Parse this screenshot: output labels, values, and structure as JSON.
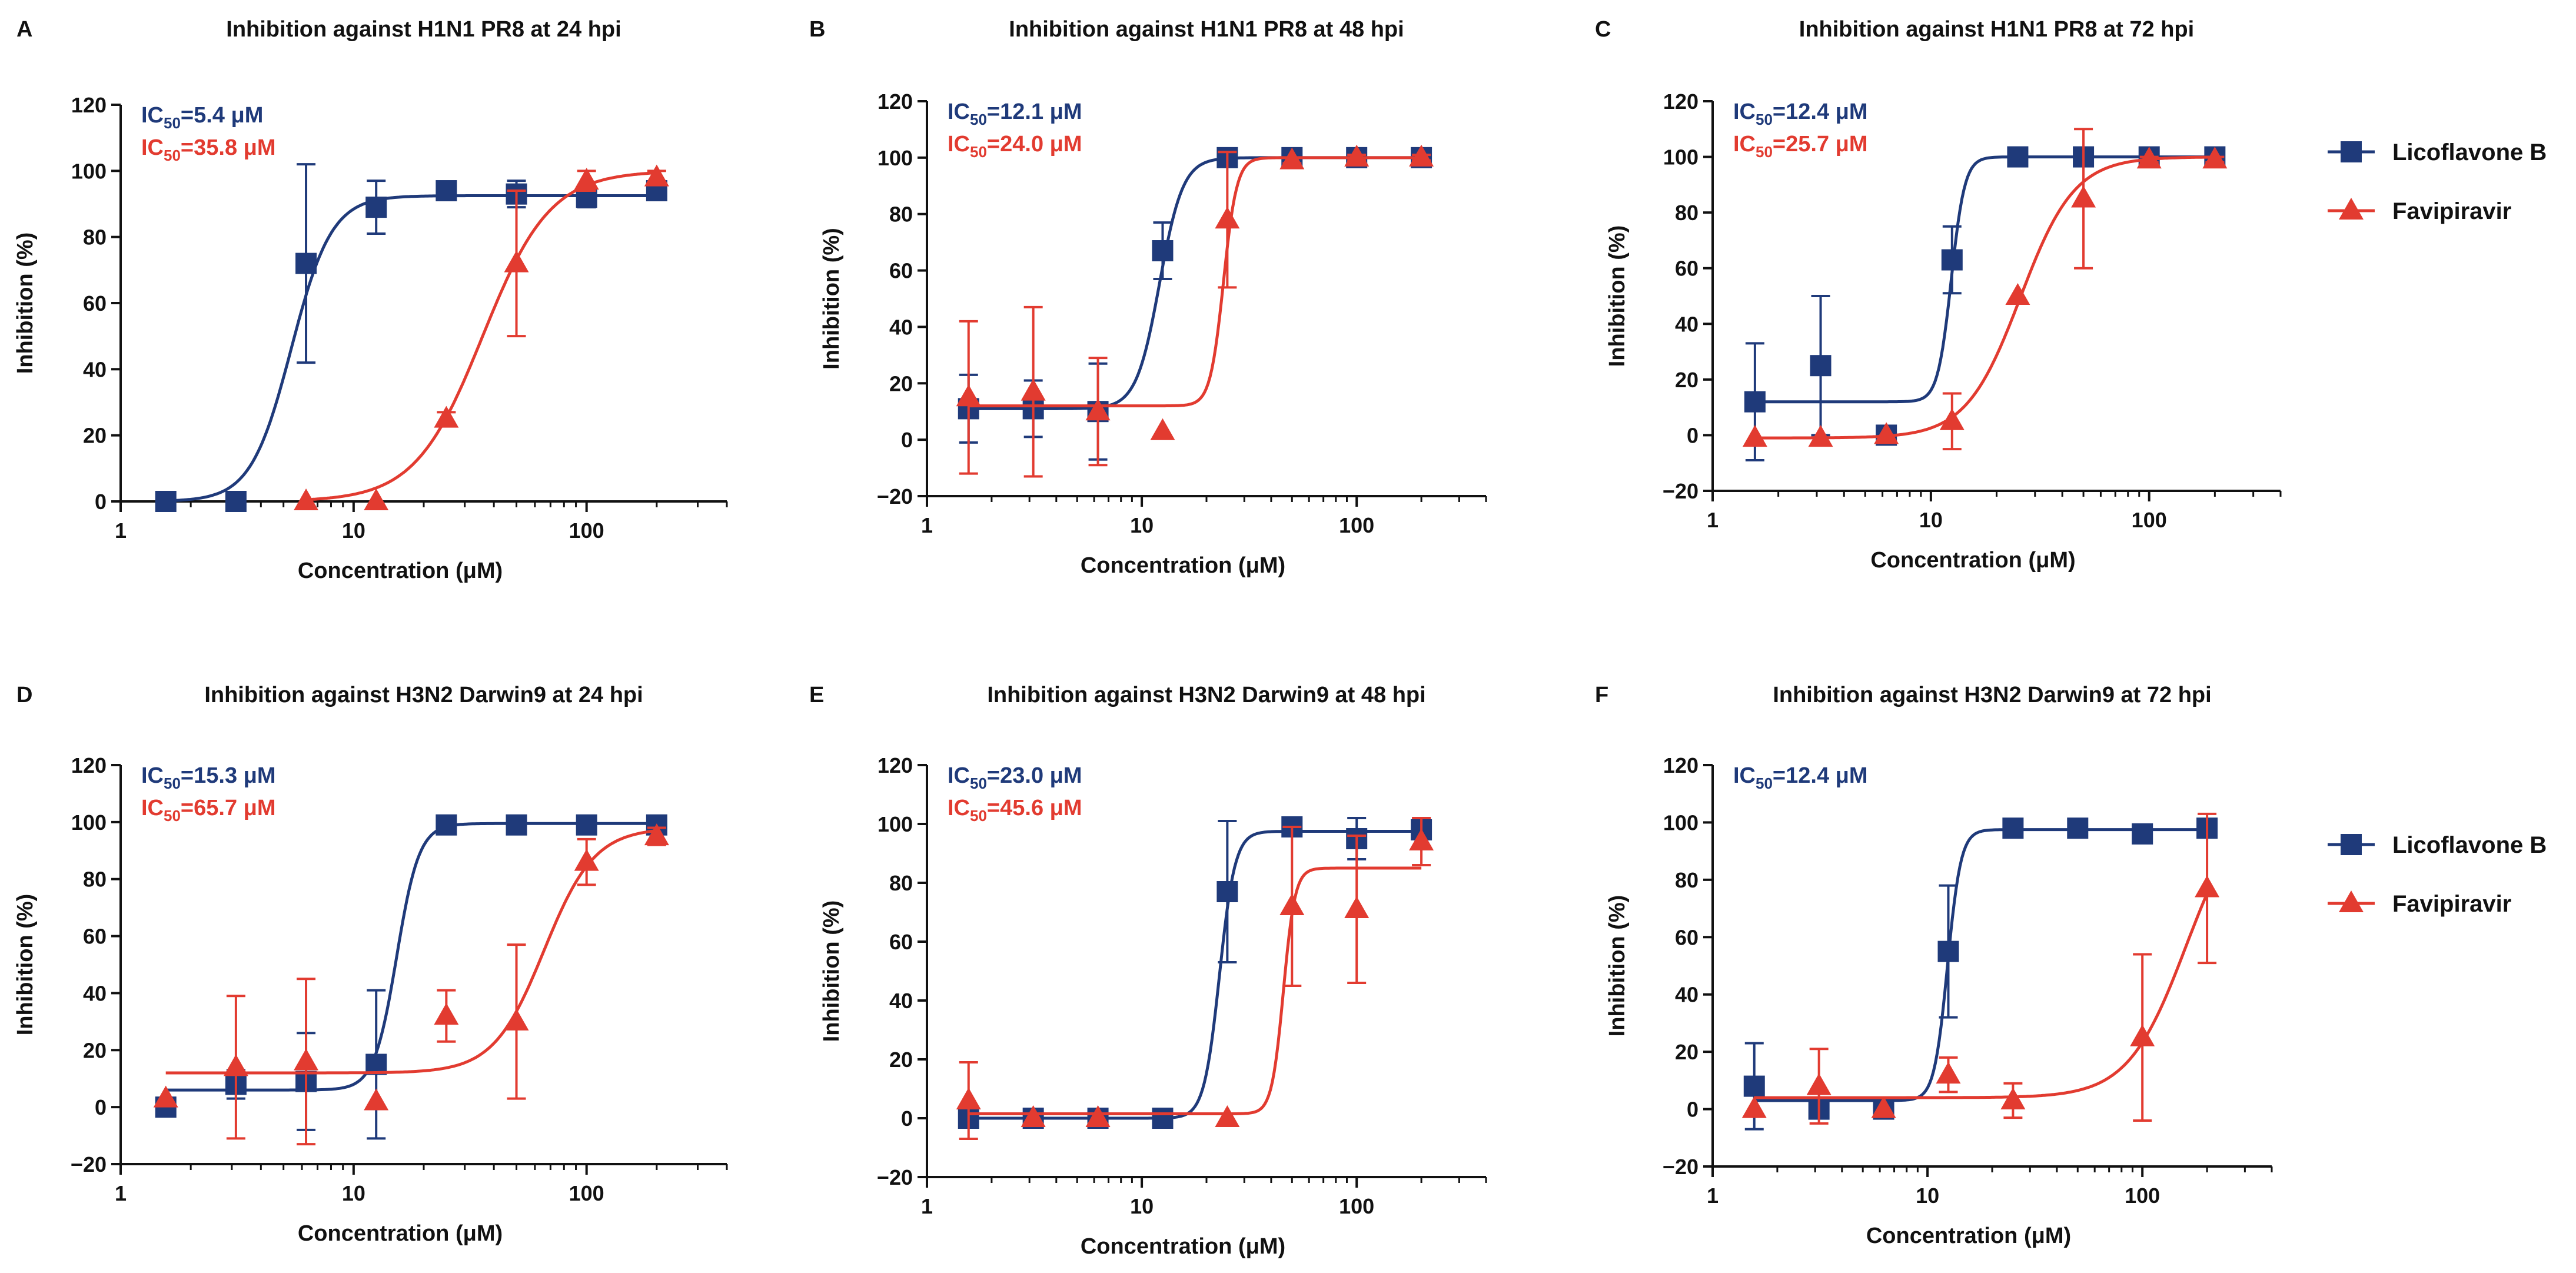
{
  "colors": {
    "licoflavone": "#1f3a7a",
    "favipiravir": "#e23b30",
    "axis": "#111111"
  },
  "legend_groups": [
    {
      "entries": [
        {
          "series": "licoflavone",
          "label": "Licoflavone B",
          "marker": "square"
        },
        {
          "series": "favipiravir",
          "label": "Favipiravir",
          "marker": "triangle"
        }
      ]
    },
    {
      "entries": [
        {
          "series": "licoflavone",
          "label": "Licoflavone B",
          "marker": "square"
        },
        {
          "series": "favipiravir",
          "label": "Favipiravir",
          "marker": "triangle"
        }
      ]
    }
  ],
  "chart_data": [
    {
      "type": "scatter",
      "panel": "A",
      "title": "Inhibition against H1N1 PR8 at 24 hpi",
      "xlabel": "Concentration (μM)",
      "ylabel": "Inhibition (%)",
      "xscale": "log",
      "xlim": [
        1,
        400
      ],
      "ylim": [
        0,
        120
      ],
      "xticks": [
        1,
        10,
        100
      ],
      "xtick_labels": [
        "1",
        "10",
        "100"
      ],
      "yticks": [
        0,
        20,
        40,
        60,
        80,
        100,
        120
      ],
      "annotations": [
        {
          "prefix": "IC",
          "sub": "50",
          "text": "=5.4 μM",
          "series": "licoflavone"
        },
        {
          "prefix": "IC",
          "sub": "50",
          "text": "=35.8 μM",
          "series": "favipiravir"
        }
      ],
      "series": [
        {
          "name": "Licoflavone B",
          "key": "licoflavone",
          "marker": "square",
          "x": [
            1.5625,
            3.125,
            6.25,
            12.5,
            25,
            50,
            100,
            200
          ],
          "y": [
            0,
            0,
            72,
            89,
            94,
            93,
            92,
            94
          ],
          "err": [
            0,
            0,
            30,
            8,
            2,
            4,
            3,
            2
          ],
          "fit": {
            "bottom": 0,
            "top": 92.5,
            "ic50": 5.4,
            "hill": 5
          }
        },
        {
          "name": "Favipiravir",
          "key": "favipiravir",
          "marker": "triangle",
          "x": [
            6.25,
            12.5,
            25,
            50,
            100,
            200
          ],
          "y": [
            0,
            0,
            25,
            72,
            97,
            98
          ],
          "err": [
            0,
            0,
            2,
            22,
            3,
            2
          ],
          "fit": {
            "bottom": 0,
            "top": 100,
            "ic50": 35.8,
            "hill": 3
          }
        }
      ]
    },
    {
      "type": "scatter",
      "panel": "B",
      "title": "Inhibition against H1N1 PR8 at 48 hpi",
      "xlabel": "Concentration (μM)",
      "ylabel": "Inhibition (%)",
      "xscale": "log",
      "xlim": [
        1,
        400
      ],
      "ylim": [
        -20,
        120
      ],
      "xticks": [
        1,
        10,
        100
      ],
      "xtick_labels": [
        "1",
        "10",
        "100"
      ],
      "yticks": [
        -20,
        0,
        20,
        40,
        60,
        80,
        100,
        120
      ],
      "annotations": [
        {
          "prefix": "IC",
          "sub": "50",
          "text": "=12.1 μM",
          "series": "licoflavone"
        },
        {
          "prefix": "IC",
          "sub": "50",
          "text": "=24.0 μM",
          "series": "favipiravir"
        }
      ],
      "series": [
        {
          "name": "Licoflavone B",
          "key": "licoflavone",
          "marker": "square",
          "x": [
            1.5625,
            3.125,
            6.25,
            12.5,
            25,
            50,
            100,
            200
          ],
          "y": [
            11,
            11,
            10,
            67,
            100,
            100,
            100,
            100
          ],
          "err": [
            12,
            10,
            17,
            10,
            1,
            1,
            1,
            1
          ],
          "fit": {
            "bottom": 11,
            "top": 100,
            "ic50": 12.1,
            "hill": 8
          }
        },
        {
          "name": "Favipiravir",
          "key": "favipiravir",
          "marker": "triangle",
          "x": [
            1.5625,
            3.125,
            6.25,
            12.5,
            25,
            50,
            100,
            200
          ],
          "y": [
            15,
            17,
            10,
            3,
            78,
            99,
            100,
            100
          ],
          "err": [
            27,
            30,
            19,
            0,
            24,
            1,
            1,
            1
          ],
          "fit": {
            "bottom": 12,
            "top": 100,
            "ic50": 24.0,
            "hill": 14
          }
        }
      ]
    },
    {
      "type": "scatter",
      "panel": "C",
      "title": "Inhibition against H1N1 PR8 at 72 hpi",
      "xlabel": "Concentration (μM)",
      "ylabel": "Inhibition (%)",
      "xscale": "log",
      "xlim": [
        1,
        400
      ],
      "ylim": [
        -20,
        120
      ],
      "xticks": [
        1,
        10,
        100
      ],
      "xtick_labels": [
        "1",
        "10",
        "100"
      ],
      "yticks": [
        -20,
        0,
        20,
        40,
        60,
        80,
        100,
        120
      ],
      "annotations": [
        {
          "prefix": "IC",
          "sub": "50",
          "text": "=12.4 μM",
          "series": "licoflavone"
        },
        {
          "prefix": "IC",
          "sub": "50",
          "text": "=25.7 μM",
          "series": "favipiravir"
        }
      ],
      "series": [
        {
          "name": "Licoflavone B",
          "key": "licoflavone",
          "marker": "square",
          "x": [
            1.5625,
            3.125,
            6.25,
            12.5,
            25,
            50,
            100,
            200
          ],
          "y": [
            12,
            25,
            0,
            63,
            100,
            100,
            100,
            100
          ],
          "err": [
            21,
            25,
            0,
            12,
            1,
            1,
            1,
            1
          ],
          "fit": {
            "bottom": 12,
            "top": 100,
            "ic50": 12.4,
            "hill": 14
          }
        },
        {
          "name": "Favipiravir",
          "key": "favipiravir",
          "marker": "triangle",
          "x": [
            1.5625,
            3.125,
            6.25,
            12.5,
            25,
            50,
            100,
            200
          ],
          "y": [
            -1,
            -1,
            0,
            5,
            50,
            85,
            99,
            99
          ],
          "err": [
            0,
            0,
            0,
            10,
            0,
            25,
            1,
            1
          ],
          "fit": {
            "bottom": -1,
            "top": 100,
            "ic50": 25.7,
            "hill": 3.5
          }
        }
      ]
    },
    {
      "type": "scatter",
      "panel": "D",
      "title": "Inhibition against H3N2 Darwin9 at 24 hpi",
      "xlabel": "Concentration (μM)",
      "ylabel": "Inhibition (%)",
      "xscale": "log",
      "xlim": [
        1,
        400
      ],
      "ylim": [
        -20,
        120
      ],
      "xticks": [
        1,
        10,
        100
      ],
      "xtick_labels": [
        "1",
        "10",
        "100"
      ],
      "yticks": [
        -20,
        0,
        20,
        40,
        60,
        80,
        100,
        120
      ],
      "annotations": [
        {
          "prefix": "IC",
          "sub": "50",
          "text": "=15.3 μM",
          "series": "licoflavone"
        },
        {
          "prefix": "IC",
          "sub": "50",
          "text": "=65.7 μM",
          "series": "favipiravir"
        }
      ],
      "series": [
        {
          "name": "Licoflavone B",
          "key": "licoflavone",
          "marker": "square",
          "x": [
            1.5625,
            3.125,
            6.25,
            12.5,
            25,
            50,
            100,
            200
          ],
          "y": [
            0,
            8,
            9,
            15,
            99,
            99,
            99,
            99
          ],
          "err": [
            0,
            5,
            17,
            26,
            1,
            1,
            1,
            1
          ],
          "fit": {
            "bottom": 6,
            "top": 99.5,
            "ic50": 15.3,
            "hill": 9
          }
        },
        {
          "name": "Favipiravir",
          "key": "favipiravir",
          "marker": "triangle",
          "x": [
            1.5625,
            3.125,
            6.25,
            12.5,
            25,
            50,
            100,
            200
          ],
          "y": [
            3,
            14,
            16,
            2,
            32,
            30,
            86,
            95
          ],
          "err": [
            0,
            25,
            29,
            0,
            9,
            27,
            8,
            3
          ],
          "fit": {
            "bottom": 12,
            "top": 98,
            "ic50": 65.7,
            "hill": 4
          }
        }
      ]
    },
    {
      "type": "scatter",
      "panel": "E",
      "title": "Inhibition against H3N2 Darwin9 at 48 hpi",
      "xlabel": "Concentration (μM)",
      "ylabel": "Inhibition (%)",
      "xscale": "log",
      "xlim": [
        1,
        400
      ],
      "ylim": [
        -20,
        120
      ],
      "xticks": [
        1,
        10,
        100
      ],
      "xtick_labels": [
        "1",
        "10",
        "100"
      ],
      "yticks": [
        -20,
        0,
        20,
        40,
        60,
        80,
        100,
        120
      ],
      "annotations": [
        {
          "prefix": "IC",
          "sub": "50",
          "text": "=23.0 μM",
          "series": "licoflavone"
        },
        {
          "prefix": "IC",
          "sub": "50",
          "text": "=45.6 μM",
          "series": "favipiravir"
        }
      ],
      "series": [
        {
          "name": "Licoflavone B",
          "key": "licoflavone",
          "marker": "square",
          "x": [
            1.5625,
            3.125,
            6.25,
            12.5,
            25,
            50,
            100,
            200
          ],
          "y": [
            0,
            0,
            0,
            0,
            77,
            99,
            95,
            98
          ],
          "err": [
            0,
            0,
            0,
            0,
            24,
            1,
            7,
            3
          ],
          "fit": {
            "bottom": 0,
            "top": 97.5,
            "ic50": 23.0,
            "hill": 12
          }
        },
        {
          "name": "Favipiravir",
          "key": "favipiravir",
          "marker": "triangle",
          "x": [
            1.5625,
            3.125,
            6.25,
            25,
            50,
            100,
            200
          ],
          "y": [
            6,
            0,
            0,
            0,
            72,
            71,
            94
          ],
          "err": [
            13,
            0,
            0,
            0,
            27,
            25,
            8
          ],
          "fit": {
            "bottom": 1.5,
            "top": 85,
            "ic50": 45.6,
            "hill": 16
          }
        }
      ]
    },
    {
      "type": "scatter",
      "panel": "F",
      "title": "Inhibition against H3N2 Darwin9 at 72 hpi",
      "xlabel": "Concentration (μM)",
      "ylabel": "Inhibition (%)",
      "xscale": "log",
      "xlim": [
        1,
        400
      ],
      "ylim": [
        -20,
        120
      ],
      "xticks": [
        1,
        10,
        100
      ],
      "xtick_labels": [
        "1",
        "10",
        "100"
      ],
      "yticks": [
        -20,
        0,
        20,
        40,
        60,
        80,
        100,
        120
      ],
      "annotations": [
        {
          "prefix": "IC",
          "sub": "50",
          "text": "=12.4 μM",
          "series": "licoflavone"
        }
      ],
      "series": [
        {
          "name": "Licoflavone B",
          "key": "licoflavone",
          "marker": "square",
          "x": [
            1.5625,
            3.125,
            6.25,
            12.5,
            25,
            50,
            100,
            200
          ],
          "y": [
            8,
            0,
            0,
            55,
            98,
            98,
            96,
            98
          ],
          "err": [
            15,
            2,
            0,
            23,
            1,
            1,
            1,
            1
          ],
          "fit": {
            "bottom": 3,
            "top": 97.5,
            "ic50": 12.4,
            "hill": 14
          }
        },
        {
          "name": "Favipiravir",
          "key": "favipiravir",
          "marker": "triangle",
          "x": [
            1.5625,
            3.125,
            6.25,
            12.5,
            25,
            100,
            200
          ],
          "y": [
            0,
            8,
            0,
            12,
            3,
            25,
            77
          ],
          "err": [
            0,
            13,
            0,
            6,
            6,
            29,
            26
          ],
          "fit": {
            "bottom": 4,
            "top": 110,
            "ic50": 160,
            "hill": 3.2
          }
        }
      ]
    }
  ]
}
